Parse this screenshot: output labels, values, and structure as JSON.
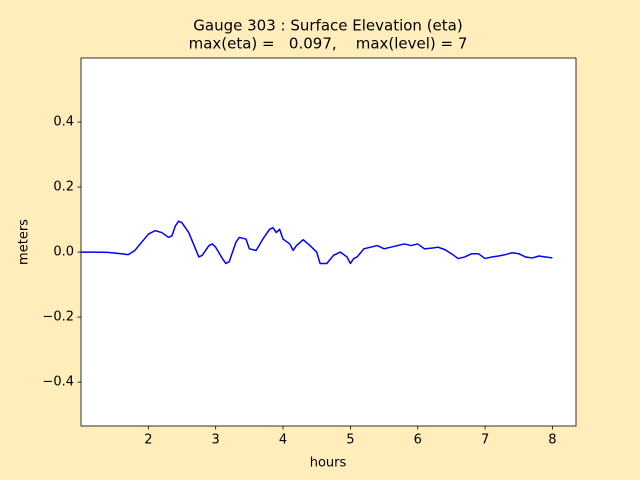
{
  "chart_data": {
    "type": "line",
    "title": "Gauge 303 : Surface Elevation (eta)",
    "subtitle": "max(eta) =   0.097,    max(level) = 7",
    "x_label": "hours",
    "y_label": "meters",
    "color": "#0000ff",
    "x": [
      1.0,
      1.2,
      1.4,
      1.6,
      1.7,
      1.8,
      1.9,
      2.0,
      2.1,
      2.2,
      2.3,
      2.35,
      2.4,
      2.45,
      2.5,
      2.6,
      2.7,
      2.75,
      2.8,
      2.9,
      2.95,
      3.0,
      3.1,
      3.15,
      3.2,
      3.3,
      3.35,
      3.45,
      3.5,
      3.6,
      3.7,
      3.8,
      3.85,
      3.9,
      3.95,
      4.0,
      4.1,
      4.15,
      4.2,
      4.3,
      4.4,
      4.5,
      4.55,
      4.65,
      4.75,
      4.85,
      4.95,
      5.0,
      5.05,
      5.1,
      5.2,
      5.3,
      5.4,
      5.5,
      5.6,
      5.7,
      5.8,
      5.9,
      6.0,
      6.1,
      6.2,
      6.3,
      6.4,
      6.5,
      6.6,
      6.7,
      6.8,
      6.9,
      7.0,
      7.1,
      7.2,
      7.3,
      7.4,
      7.5,
      7.6,
      7.7,
      7.8,
      7.9,
      8.0
    ],
    "values": [
      0.0,
      0.0,
      -0.001,
      -0.005,
      -0.008,
      0.005,
      0.03,
      0.055,
      0.066,
      0.06,
      0.045,
      0.05,
      0.08,
      0.095,
      0.09,
      0.06,
      0.01,
      -0.015,
      -0.01,
      0.02,
      0.025,
      0.015,
      -0.02,
      -0.035,
      -0.03,
      0.03,
      0.045,
      0.04,
      0.01,
      0.005,
      0.04,
      0.07,
      0.075,
      0.06,
      0.07,
      0.04,
      0.025,
      0.005,
      0.02,
      0.038,
      0.02,
      0.0,
      -0.035,
      -0.035,
      -0.01,
      0.0,
      -0.015,
      -0.035,
      -0.02,
      -0.015,
      0.01,
      0.015,
      0.02,
      0.01,
      0.015,
      0.02,
      0.025,
      0.02,
      0.025,
      0.01,
      0.012,
      0.015,
      0.008,
      -0.005,
      -0.02,
      -0.015,
      -0.005,
      -0.005,
      -0.02,
      -0.015,
      -0.012,
      -0.008,
      -0.002,
      -0.005,
      -0.015,
      -0.018,
      -0.012,
      -0.015,
      -0.018
    ],
    "xlim": [
      1.0,
      8.35
    ],
    "xticks": [
      2,
      3,
      4,
      5,
      6,
      7,
      8
    ],
    "ylim": [
      -0.535,
      0.597
    ],
    "yticks": [
      {
        "value": -0.4,
        "label": "−0.4"
      },
      {
        "value": -0.2,
        "label": "−0.2"
      },
      {
        "value": 0,
        "label": "0.0"
      },
      0.2,
      0.4
    ]
  }
}
